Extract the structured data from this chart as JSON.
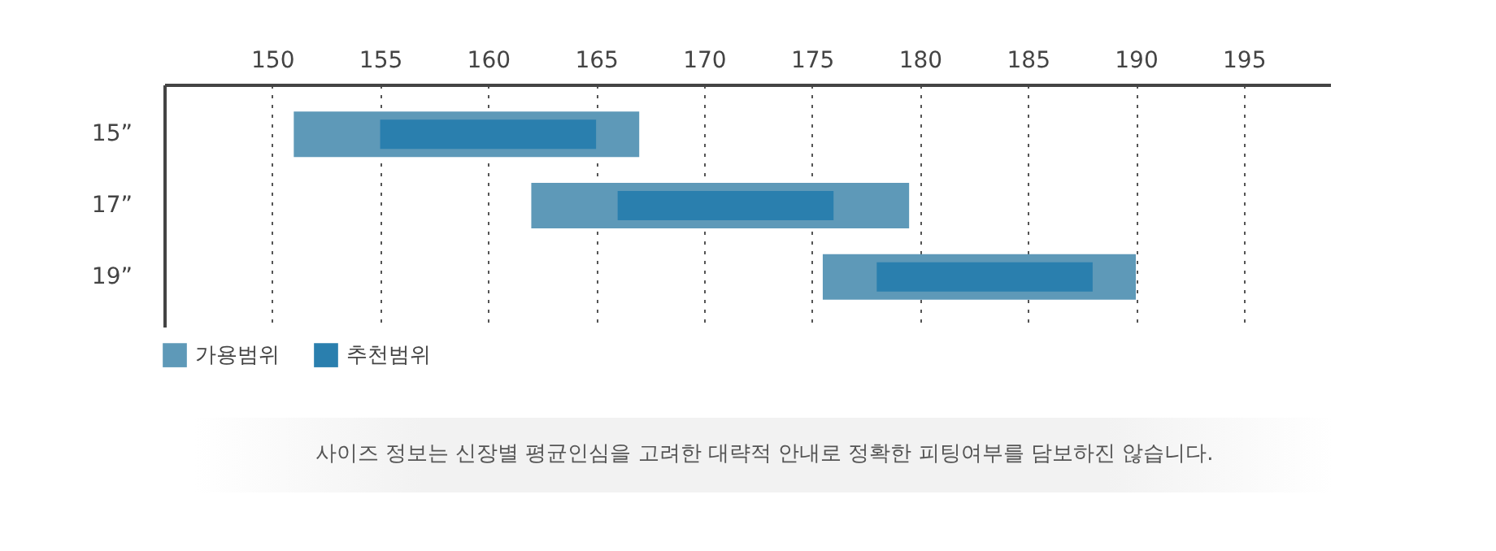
{
  "chart_data": {
    "type": "bar",
    "orientation": "horizontal",
    "categories": [
      "15”",
      "17”",
      "19”"
    ],
    "series": [
      {
        "name": "가용범위",
        "color": "#5e99b8",
        "base": [
          151,
          162,
          175.5
        ],
        "values": [
          16,
          17.5,
          14.5
        ]
      },
      {
        "name": "추천범위",
        "color": "#2a7fae",
        "base": [
          155,
          166,
          178
        ],
        "values": [
          10,
          10,
          10
        ]
      }
    ],
    "xlim": [
      145,
      199
    ],
    "xticks": [
      150,
      155,
      160,
      165,
      170,
      175,
      180,
      185,
      190,
      195
    ],
    "grid": "x",
    "legend": "bottom left",
    "annotations": [
      "사이즈 정보는 신장별 평균인심을 고려한 대략적 안내로 정확한 피팅여부를 담보하진 않습니다."
    ]
  }
}
